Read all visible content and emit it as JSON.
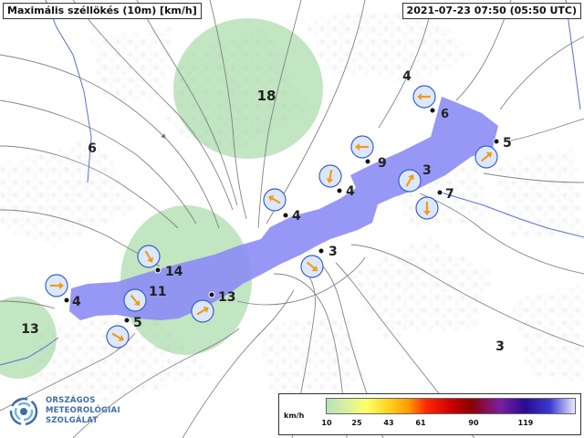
{
  "map_title": "Maximális széllökés (10m) [km/h]",
  "timestamp": "2021-07-23 07:50 (05:50 UTC)",
  "station_values": [
    {
      "label": "18",
      "name": "label-18"
    },
    {
      "label": "6",
      "name": "label-6-west"
    },
    {
      "label": "4",
      "name": "label-4-northeast"
    },
    {
      "label": "6",
      "name": "label-6-east"
    },
    {
      "label": "5",
      "name": "label-5-east"
    },
    {
      "label": "9",
      "name": "label-9"
    },
    {
      "label": "3",
      "name": "label-3-center-east"
    },
    {
      "label": "7",
      "name": "label-7"
    },
    {
      "label": "4",
      "name": "label-4-center"
    },
    {
      "label": "4",
      "name": "label-4-center-west"
    },
    {
      "label": "3",
      "name": "label-3-center"
    },
    {
      "label": "14",
      "name": "label-14"
    },
    {
      "label": "11",
      "name": "label-11"
    },
    {
      "label": "13",
      "name": "label-13-south"
    },
    {
      "label": "4",
      "name": "label-4-west"
    },
    {
      "label": "5",
      "name": "label-5-southwest"
    },
    {
      "label": "13",
      "name": "label-13-west"
    },
    {
      "label": "3",
      "name": "label-3-southeast"
    }
  ],
  "legend": {
    "unit": "km/h",
    "ticks": [
      "10",
      "25",
      "43",
      "61",
      "90",
      "119"
    ],
    "colors": [
      "#b7e3b7",
      "#ffff66",
      "#ffd21e",
      "#ff9a00",
      "#ff2a00",
      "#cc0000",
      "#8b0000",
      "#7b1fa2",
      "#2b0b8f",
      "#0a0a60",
      "#e9e9ff"
    ]
  },
  "logo": {
    "line1": "ORSZÁGOS",
    "line2": "METEOROLÓGIAI",
    "line3": "SZOLGÁLAT"
  },
  "colors": {
    "lake": "#8c8cf5",
    "green": "#8fd08f",
    "arrow": "#f39c12",
    "circle_fill": "#dce8ff",
    "circle_stroke": "#3a5fcc"
  }
}
